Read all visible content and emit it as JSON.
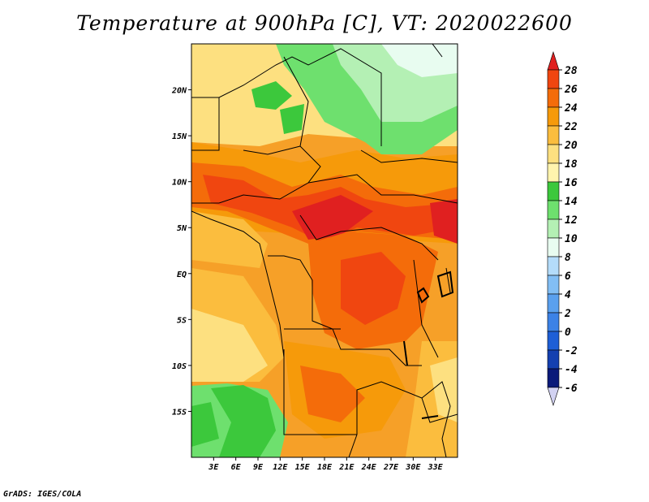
{
  "title": "Temperature at 900hPa [C], VT: 2020022600",
  "credit": "GrADS: IGES/COLA",
  "map": {
    "lon_range": [
      0,
      36
    ],
    "lat_range": [
      -20,
      25
    ],
    "lon_ticks": [
      "3E",
      "6E",
      "9E",
      "12E",
      "15E",
      "18E",
      "21E",
      "24E",
      "27E",
      "30E",
      "33E"
    ],
    "lat_ticks": [
      "20N",
      "15N",
      "10N",
      "5N",
      "EQ",
      "5S",
      "10S",
      "15S"
    ]
  },
  "colorbar": {
    "labels": [
      "28",
      "26",
      "24",
      "22",
      "20",
      "18",
      "16",
      "14",
      "12",
      "10",
      "8",
      "6",
      "4",
      "2",
      "0",
      "-2",
      "-4",
      "-6"
    ],
    "colors": [
      "#e02020",
      "#f04610",
      "#f46c0a",
      "#f69a0a",
      "#fbbd3e",
      "#fde080",
      "#fff4ae",
      "#3cc83c",
      "#6ee06e",
      "#b4f0b4",
      "#e8fcf0",
      "#b4dcfa",
      "#82bef4",
      "#5aa0ee",
      "#3c82e6",
      "#1e5fd6",
      "#1440b0",
      "#0a1a7a",
      "#d2d2f2"
    ]
  }
}
